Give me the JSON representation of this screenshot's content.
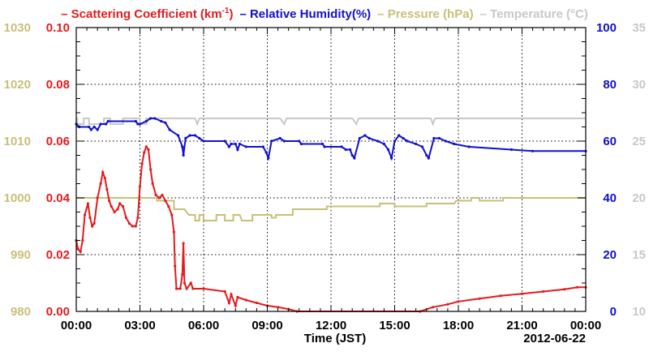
{
  "chart_data": {
    "type": "line",
    "legend": {
      "placement": "top",
      "entries": [
        {
          "dash": "–",
          "label": "Scattering Coefficient (km",
          "sup": "-1",
          "suffix": ")",
          "color": "#e41a1c"
        },
        {
          "dash": "–",
          "label": "Relative Humidity(%)",
          "color": "#1010d0"
        },
        {
          "dash": "–",
          "label": "Pressure (hPa)",
          "color": "#c8bf78"
        },
        {
          "dash": "–",
          "label": "Temperature (°C)",
          "color": "#c8c8c8"
        }
      ]
    },
    "xlabel": "Time (JST)",
    "date_label": "2012-06-22",
    "xlim": [
      0,
      24
    ],
    "x_ticks": [
      {
        "value": 0,
        "label": "00:00"
      },
      {
        "value": 3,
        "label": "03:00"
      },
      {
        "value": 6,
        "label": "06:00"
      },
      {
        "value": 9,
        "label": "09:00"
      },
      {
        "value": 12,
        "label": "12:00"
      },
      {
        "value": 15,
        "label": "15:00"
      },
      {
        "value": 18,
        "label": "18:00"
      },
      {
        "value": 21,
        "label": "21:00"
      },
      {
        "value": 24,
        "label": "00:00"
      }
    ],
    "grid": true,
    "axes": {
      "pressure": {
        "side": "left-outer",
        "range": [
          980,
          1030
        ],
        "color": "#c8bf78",
        "ticks": [
          "980",
          "990",
          "1000",
          "1010",
          "1020",
          "1030"
        ]
      },
      "scattering": {
        "side": "left-inner",
        "range": [
          0,
          0.1
        ],
        "color": "#e41a1c",
        "ticks": [
          "0.00",
          "0.02",
          "0.04",
          "0.06",
          "0.08",
          "0.10"
        ]
      },
      "humidity": {
        "side": "right-inner",
        "range": [
          0,
          100
        ],
        "color": "#1010d0",
        "ticks": [
          "0",
          "20",
          "40",
          "60",
          "80",
          "100"
        ]
      },
      "temperature": {
        "side": "right-outer",
        "range": [
          10,
          35
        ],
        "color": "#c8c8c8",
        "ticks": [
          "10",
          "15",
          "20",
          "25",
          "30",
          "35"
        ]
      }
    },
    "series": [
      {
        "key": "temperature",
        "color": "#c8c8c8",
        "points": [
          [
            0,
            27
          ],
          [
            0.05,
            27
          ],
          [
            0.05,
            26.5
          ],
          [
            0.35,
            26.5
          ],
          [
            0.35,
            27
          ],
          [
            0.6,
            27
          ],
          [
            0.6,
            26.5
          ],
          [
            1.3,
            26.5
          ],
          [
            1.3,
            27
          ],
          [
            1.6,
            27
          ],
          [
            1.6,
            26.5
          ],
          [
            2.2,
            26.5
          ],
          [
            2.2,
            27
          ],
          [
            3.0,
            27
          ],
          [
            3.0,
            26.5
          ],
          [
            3.3,
            26.5
          ],
          [
            3.3,
            27
          ],
          [
            5.6,
            27
          ],
          [
            5.7,
            26.5
          ],
          [
            5.8,
            27
          ],
          [
            9.6,
            27
          ],
          [
            9.8,
            26.5
          ],
          [
            9.9,
            27
          ],
          [
            13.0,
            27
          ],
          [
            13.2,
            26.5
          ],
          [
            13.3,
            27
          ],
          [
            16.7,
            27
          ],
          [
            16.8,
            26.5
          ],
          [
            16.9,
            27
          ],
          [
            24,
            27
          ]
        ]
      },
      {
        "key": "pressure",
        "color": "#c8bf78",
        "points": [
          [
            0,
            1000
          ],
          [
            3.8,
            1000
          ],
          [
            3.8,
            999.5
          ],
          [
            4.6,
            999.5
          ],
          [
            4.6,
            998
          ],
          [
            5.1,
            998
          ],
          [
            5.3,
            997
          ],
          [
            5.6,
            997
          ],
          [
            5.6,
            996
          ],
          [
            5.8,
            996
          ],
          [
            5.8,
            997
          ],
          [
            6.0,
            997
          ],
          [
            6.0,
            996
          ],
          [
            6.6,
            996
          ],
          [
            6.6,
            997
          ],
          [
            7.0,
            997
          ],
          [
            7.0,
            996
          ],
          [
            7.4,
            996
          ],
          [
            7.4,
            997
          ],
          [
            7.7,
            997
          ],
          [
            7.8,
            996
          ],
          [
            8.3,
            996
          ],
          [
            8.3,
            997
          ],
          [
            9.2,
            997
          ],
          [
            9.2,
            996.5
          ],
          [
            9.4,
            996.5
          ],
          [
            9.4,
            997
          ],
          [
            10.2,
            997
          ],
          [
            10.2,
            998
          ],
          [
            11.8,
            998
          ],
          [
            11.8,
            998.5
          ],
          [
            14.3,
            998.5
          ],
          [
            14.3,
            999
          ],
          [
            15.0,
            999
          ],
          [
            15.0,
            998.5
          ],
          [
            16.5,
            998.5
          ],
          [
            16.5,
            999
          ],
          [
            17.8,
            999
          ],
          [
            17.9,
            999.5
          ],
          [
            18.6,
            999.5
          ],
          [
            18.6,
            1000
          ],
          [
            19.0,
            1000
          ],
          [
            19.0,
            999.5
          ],
          [
            20.1,
            999.5
          ],
          [
            20.1,
            1000
          ],
          [
            24,
            1000
          ]
        ]
      },
      {
        "key": "humidity",
        "color": "#1010d0",
        "points": [
          [
            0,
            66
          ],
          [
            0.15,
            65
          ],
          [
            0.6,
            65
          ],
          [
            0.7,
            64
          ],
          [
            0.85,
            65
          ],
          [
            1.0,
            64
          ],
          [
            1.15,
            66
          ],
          [
            1.4,
            66
          ],
          [
            1.5,
            67
          ],
          [
            2.8,
            67
          ],
          [
            2.9,
            66
          ],
          [
            3.0,
            66
          ],
          [
            3.3,
            67
          ],
          [
            3.5,
            68
          ],
          [
            3.7,
            68
          ],
          [
            4.0,
            67
          ],
          [
            4.2,
            66.5
          ],
          [
            4.4,
            64
          ],
          [
            4.8,
            62
          ],
          [
            5.0,
            58
          ],
          [
            5.05,
            55
          ],
          [
            5.15,
            61
          ],
          [
            5.35,
            62
          ],
          [
            5.6,
            62
          ],
          [
            5.8,
            61
          ],
          [
            6.0,
            60
          ],
          [
            7.0,
            60
          ],
          [
            7.2,
            58
          ],
          [
            7.3,
            59
          ],
          [
            7.5,
            59
          ],
          [
            7.6,
            57
          ],
          [
            7.7,
            59
          ],
          [
            8.0,
            58
          ],
          [
            8.8,
            58
          ],
          [
            8.95,
            56
          ],
          [
            9.05,
            54
          ],
          [
            9.2,
            60
          ],
          [
            9.6,
            61
          ],
          [
            9.8,
            60
          ],
          [
            10.5,
            60
          ],
          [
            10.6,
            59
          ],
          [
            11.6,
            59
          ],
          [
            11.7,
            58
          ],
          [
            12.5,
            58
          ],
          [
            12.7,
            57
          ],
          [
            12.9,
            57
          ],
          [
            13.0,
            55
          ],
          [
            13.1,
            54
          ],
          [
            13.35,
            61
          ],
          [
            13.6,
            62
          ],
          [
            13.8,
            61
          ],
          [
            14.2,
            60
          ],
          [
            14.5,
            59
          ],
          [
            14.7,
            57
          ],
          [
            14.85,
            54
          ],
          [
            15.0,
            60
          ],
          [
            15.2,
            62
          ],
          [
            15.4,
            61
          ],
          [
            15.6,
            60
          ],
          [
            16.0,
            59
          ],
          [
            16.3,
            58
          ],
          [
            16.5,
            55
          ],
          [
            16.6,
            54
          ],
          [
            16.85,
            61
          ],
          [
            17.1,
            61
          ],
          [
            17.4,
            60
          ],
          [
            17.8,
            59
          ],
          [
            18.5,
            58
          ],
          [
            20.5,
            57
          ],
          [
            21.5,
            56.5
          ],
          [
            24,
            56.5
          ]
        ]
      },
      {
        "key": "scattering",
        "color": "#e41a1c",
        "points": [
          [
            0,
            0.025
          ],
          [
            0.08,
            0.022
          ],
          [
            0.2,
            0.021
          ],
          [
            0.3,
            0.025
          ],
          [
            0.4,
            0.034
          ],
          [
            0.55,
            0.038
          ],
          [
            0.65,
            0.033
          ],
          [
            0.75,
            0.03
          ],
          [
            0.85,
            0.031
          ],
          [
            1.0,
            0.04
          ],
          [
            1.15,
            0.045
          ],
          [
            1.25,
            0.049
          ],
          [
            1.35,
            0.047
          ],
          [
            1.45,
            0.043
          ],
          [
            1.55,
            0.039
          ],
          [
            1.65,
            0.037
          ],
          [
            1.8,
            0.035
          ],
          [
            1.95,
            0.036
          ],
          [
            2.05,
            0.038
          ],
          [
            2.2,
            0.037
          ],
          [
            2.35,
            0.033
          ],
          [
            2.5,
            0.031
          ],
          [
            2.65,
            0.03
          ],
          [
            2.8,
            0.03
          ],
          [
            2.9,
            0.033
          ],
          [
            3.0,
            0.044
          ],
          [
            3.1,
            0.052
          ],
          [
            3.2,
            0.056
          ],
          [
            3.3,
            0.058
          ],
          [
            3.4,
            0.057
          ],
          [
            3.5,
            0.05
          ],
          [
            3.6,
            0.045
          ],
          [
            3.75,
            0.041
          ],
          [
            3.9,
            0.04
          ],
          [
            4.05,
            0.041
          ],
          [
            4.2,
            0.039
          ],
          [
            4.35,
            0.037
          ],
          [
            4.5,
            0.034
          ],
          [
            4.6,
            0.028
          ],
          [
            4.65,
            0.016
          ],
          [
            4.72,
            0.008
          ],
          [
            4.9,
            0.008
          ],
          [
            5.0,
            0.013
          ],
          [
            5.05,
            0.024
          ],
          [
            5.1,
            0.01
          ],
          [
            5.2,
            0.008
          ],
          [
            5.4,
            0.01
          ],
          [
            5.5,
            0.008
          ],
          [
            6.0,
            0.008
          ],
          [
            7.0,
            0.007
          ],
          [
            7.2,
            0.003
          ],
          [
            7.3,
            0.006
          ],
          [
            7.5,
            0.002
          ],
          [
            7.6,
            0.005
          ],
          [
            8.0,
            0.004
          ],
          [
            8.5,
            0.003
          ],
          [
            9.0,
            0.002
          ],
          [
            9.5,
            0.0015
          ],
          [
            10.0,
            0.0008
          ],
          [
            10.4,
            0.0
          ],
          [
            16.2,
            0.0
          ],
          [
            16.8,
            0.0015
          ],
          [
            17.5,
            0.0025
          ],
          [
            18.0,
            0.0035
          ],
          [
            19.0,
            0.0045
          ],
          [
            20.0,
            0.0055
          ],
          [
            21.0,
            0.0062
          ],
          [
            22.0,
            0.007
          ],
          [
            23.0,
            0.0078
          ],
          [
            23.6,
            0.0085
          ],
          [
            24,
            0.0085
          ]
        ]
      }
    ]
  }
}
